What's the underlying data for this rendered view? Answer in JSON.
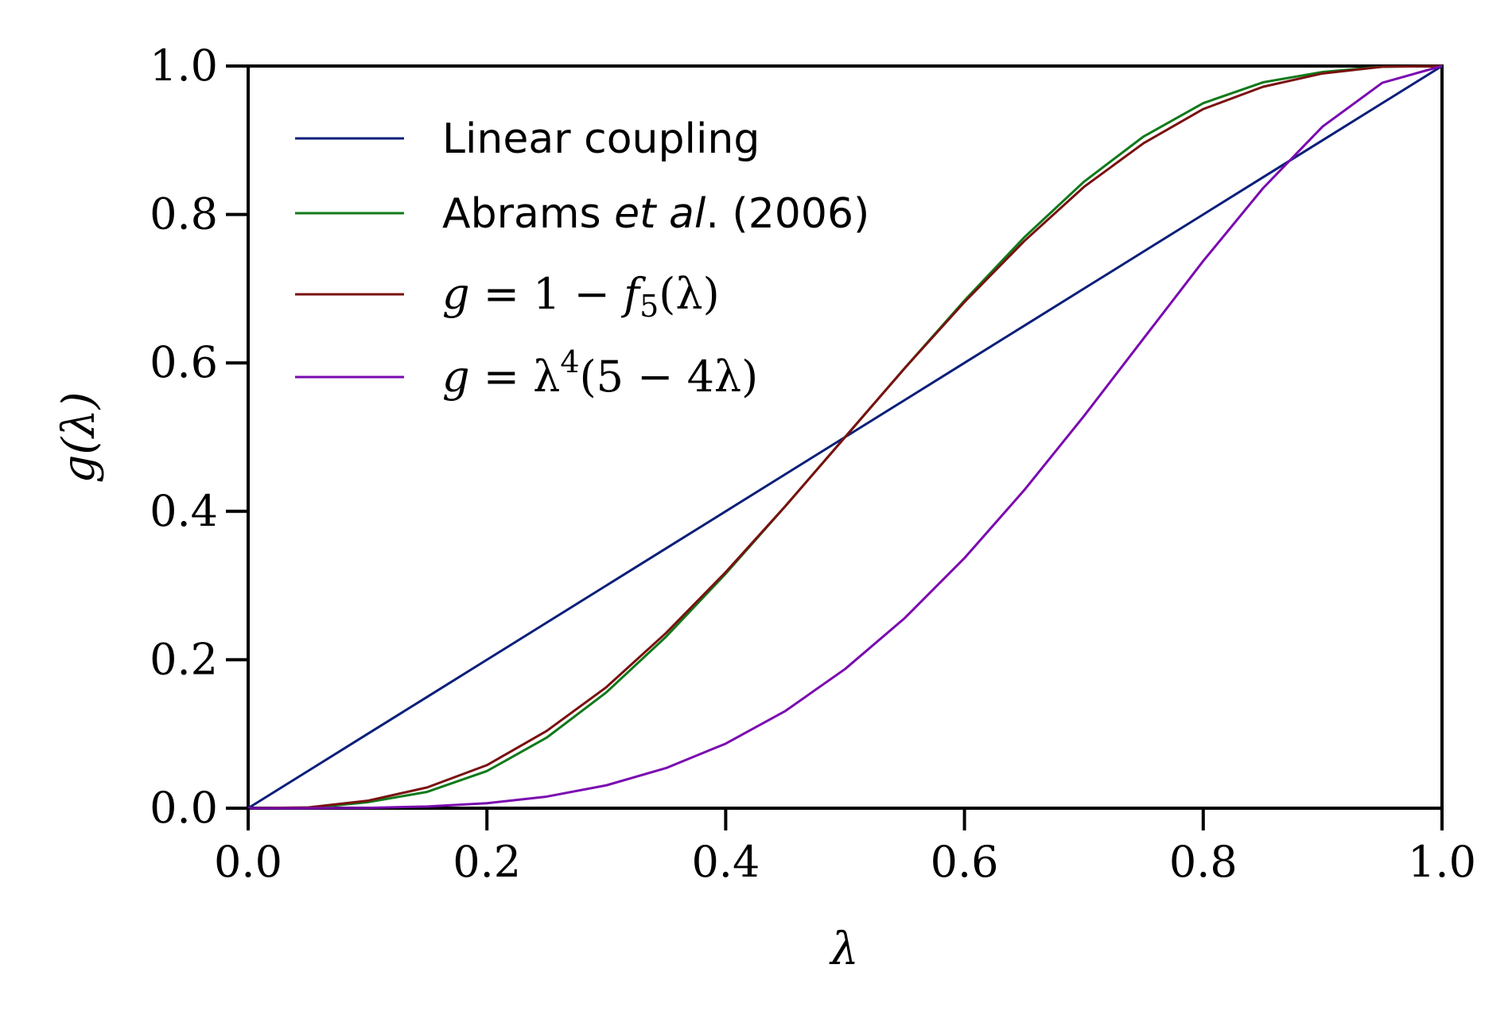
{
  "chart_data": {
    "type": "line",
    "xlabel": "λ",
    "ylabel": "g(λ)",
    "xlim": [
      0.0,
      1.0
    ],
    "ylim": [
      0.0,
      1.0
    ],
    "x_ticks": [
      "0.0",
      "0.2",
      "0.4",
      "0.6",
      "0.8",
      "1.0"
    ],
    "y_ticks": [
      "0.0",
      "0.2",
      "0.4",
      "0.6",
      "0.8",
      "1.0"
    ],
    "grid": false,
    "legend_position": "top-left",
    "x": [
      0.0,
      0.05,
      0.1,
      0.15,
      0.2,
      0.25,
      0.3,
      0.35,
      0.4,
      0.45,
      0.5,
      0.55,
      0.6,
      0.65,
      0.7,
      0.75,
      0.8,
      0.85,
      0.9,
      0.95,
      1.0
    ],
    "series": [
      {
        "name": "Linear coupling",
        "color": "#0b1f7a",
        "values": [
          0.0,
          0.05,
          0.1,
          0.15,
          0.2,
          0.25,
          0.3,
          0.35,
          0.4,
          0.45,
          0.5,
          0.55,
          0.6,
          0.65,
          0.7,
          0.75,
          0.8,
          0.85,
          0.9,
          0.95,
          1.0
        ]
      },
      {
        "name_prefix": "Abrams ",
        "name_italic": "et al",
        "name_suffix": ". (2006)",
        "color": "#0f7a1a",
        "values": [
          0.0,
          0.0,
          0.008,
          0.022,
          0.05,
          0.095,
          0.156,
          0.231,
          0.316,
          0.407,
          0.5,
          0.593,
          0.684,
          0.769,
          0.844,
          0.905,
          0.95,
          0.978,
          0.992,
          0.999,
          1.0
        ]
      },
      {
        "name_lhs": "g",
        "name_rhs": " = 1 − ",
        "name_f": "f",
        "name_sub": "5",
        "name_tail": "(λ)",
        "color": "#7a1010",
        "values": [
          0.0,
          0.001,
          0.01,
          0.028,
          0.058,
          0.104,
          0.163,
          0.236,
          0.318,
          0.407,
          0.5,
          0.593,
          0.682,
          0.764,
          0.837,
          0.896,
          0.942,
          0.972,
          0.99,
          0.999,
          1.0
        ]
      },
      {
        "name_lhs": "g",
        "name_mid": " = λ",
        "name_sup": "4",
        "name_tail": "(5 − 4λ)",
        "color": "#7a0ab0",
        "values": [
          0.0,
          3e-05,
          0.00046,
          0.00223,
          0.0067,
          0.0156,
          0.0308,
          0.054,
          0.087,
          0.131,
          0.1875,
          0.2562,
          0.337,
          0.4284,
          0.5282,
          0.6328,
          0.7373,
          0.8352,
          0.9185,
          0.9774,
          1.0
        ]
      }
    ]
  }
}
